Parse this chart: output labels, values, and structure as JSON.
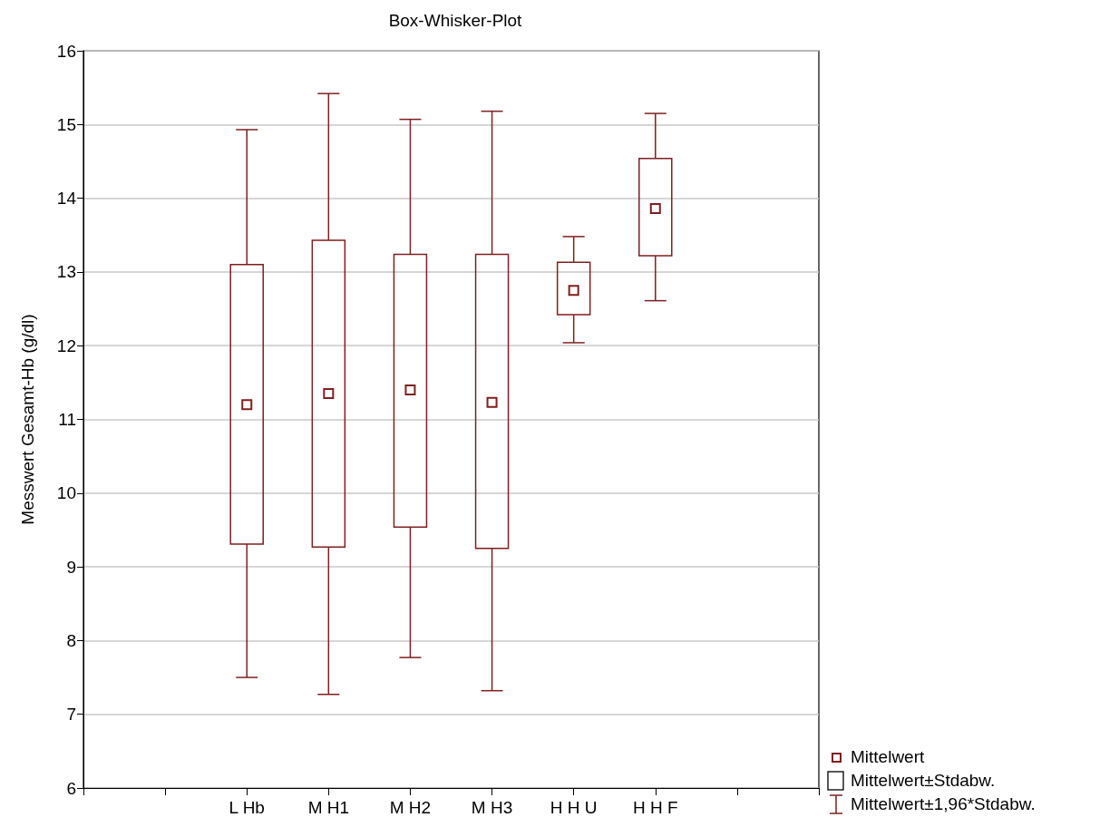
{
  "chart_data": {
    "type": "box",
    "title": "Box-Whisker-Plot",
    "ylabel": "Messwert Gesamt-Hb (g/dl)",
    "categories": [
      null,
      null,
      "L Hb",
      "M H1",
      "M H2",
      "M H3",
      "H H U",
      "H H F",
      null,
      null
    ],
    "boxes": [
      null,
      null,
      {
        "low": 7.5,
        "q1": 9.31,
        "median": 11.2,
        "q3": 13.1,
        "high": 14.93
      },
      {
        "low": 7.27,
        "q1": 9.27,
        "median": 11.35,
        "q3": 13.43,
        "high": 15.42
      },
      {
        "low": 7.77,
        "q1": 9.54,
        "median": 11.4,
        "q3": 13.24,
        "high": 15.07
      },
      {
        "low": 7.32,
        "q1": 9.25,
        "median": 11.23,
        "q3": 13.24,
        "high": 15.18
      },
      {
        "low": 12.04,
        "q1": 12.42,
        "median": 12.75,
        "q3": 13.13,
        "high": 13.48
      },
      {
        "low": 12.61,
        "q1": 13.22,
        "median": 13.86,
        "q3": 14.54,
        "high": 15.15
      },
      null,
      null
    ],
    "color": "#7f1f1f",
    "ylim": [
      6,
      16
    ],
    "yticks": [
      6,
      7,
      8,
      9,
      10,
      11,
      12,
      13,
      14,
      15,
      16
    ],
    "grid": "y",
    "marker": "square",
    "annotations": [
      "Mittelwert",
      "Mittelwert±Stdabw.",
      "Mittelwert±1,96*Stdabw."
    ]
  }
}
